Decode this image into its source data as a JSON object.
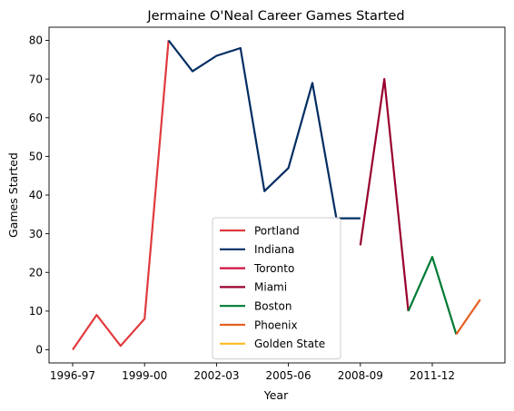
{
  "chart_data": {
    "type": "line",
    "title": "Jermaine O'Neal Career Games Started",
    "xlabel": "Year",
    "ylabel": "Games Started",
    "x_ticks": [
      "1996-97",
      "1999-00",
      "2002-03",
      "2005-06",
      "2008-09",
      "2011-12"
    ],
    "y_ticks": [
      0,
      10,
      20,
      30,
      40,
      50,
      60,
      70,
      80
    ],
    "ylim": [
      -3.4,
      83.4
    ],
    "grid": false,
    "legend_position": "lower-center",
    "series": [
      {
        "name": "Portland",
        "color": "#E03A3E",
        "points": [
          [
            "1996-97",
            0
          ],
          [
            "1997-98",
            9
          ],
          [
            "1998-99",
            1
          ],
          [
            "1999-00",
            8
          ],
          [
            "2000-01",
            80
          ]
        ]
      },
      {
        "name": "Indiana",
        "color": "#002D62",
        "points": [
          [
            "2000-01",
            80
          ],
          [
            "2001-02",
            72
          ],
          [
            "2002-03",
            76
          ],
          [
            "2003-04",
            78
          ],
          [
            "2004-05",
            41
          ],
          [
            "2005-06",
            47
          ],
          [
            "2006-07",
            69
          ],
          [
            "2007-08",
            34
          ],
          [
            "2008-09",
            34
          ]
        ]
      },
      {
        "name": "Toronto",
        "color": "#CE1141",
        "points": [
          [
            "2008-09",
            27
          ]
        ]
      },
      {
        "name": "Miami",
        "color": "#98002E",
        "points": [
          [
            "2008-09",
            27
          ],
          [
            "2009-10",
            70
          ],
          [
            "2010-11",
            10
          ]
        ]
      },
      {
        "name": "Boston",
        "color": "#007A33",
        "points": [
          [
            "2010-11",
            10
          ],
          [
            "2011-12",
            24
          ],
          [
            "2012-13",
            4
          ]
        ]
      },
      {
        "name": "Phoenix",
        "color": "#E56020",
        "points": [
          [
            "2012-13",
            4
          ],
          [
            "2013-14",
            13
          ]
        ]
      },
      {
        "name": "Golden State",
        "color": "#FDB927",
        "points": []
      }
    ]
  }
}
